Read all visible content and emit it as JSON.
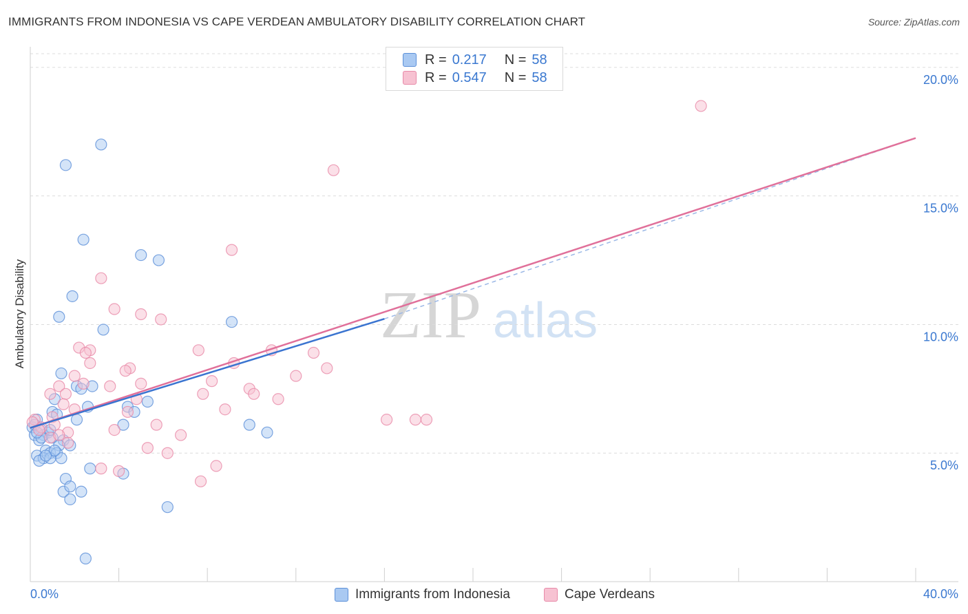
{
  "title": "IMMIGRANTS FROM INDONESIA VS CAPE VERDEAN AMBULATORY DISABILITY CORRELATION CHART",
  "source": "Source: ZipAtlas.com",
  "legend": {
    "r_label": "R =",
    "n_label": "N =",
    "series1": {
      "r": "0.217",
      "n": "58"
    },
    "series2": {
      "r": "0.547",
      "n": "58"
    }
  },
  "bottom_legend": {
    "series1": "Immigrants from Indonesia",
    "series2": "Cape Verdeans"
  },
  "watermark": {
    "zip": "ZIP",
    "atlas": "atlas"
  },
  "colors": {
    "blue_fill": "#a9c9f2",
    "blue_stroke": "#5b8fd8",
    "blue_line": "#3a74d0",
    "pink_fill": "#f7c2d2",
    "pink_stroke": "#e889a8",
    "pink_line": "#e0709a",
    "axis_text": "#3a78d0"
  },
  "chart_data": {
    "type": "scatter",
    "xlabel": "",
    "ylabel": "Ambulatory Disability",
    "xlim": [
      0,
      40
    ],
    "ylim": [
      0,
      20.8
    ],
    "x_tick_labels": [
      {
        "value": 0,
        "label": "0.0%"
      },
      {
        "value": 40,
        "label": "40.0%"
      }
    ],
    "y_tick_labels": [
      {
        "value": 5,
        "label": "5.0%"
      },
      {
        "value": 10,
        "label": "10.0%"
      },
      {
        "value": 15,
        "label": "15.0%"
      },
      {
        "value": 20,
        "label": "20.0%"
      }
    ],
    "series": [
      {
        "name": "Immigrants from Indonesia",
        "points": [
          [
            3.2,
            17.0
          ],
          [
            1.6,
            16.2
          ],
          [
            2.4,
            13.3
          ],
          [
            5.0,
            12.7
          ],
          [
            5.8,
            12.5
          ],
          [
            1.9,
            11.1
          ],
          [
            1.3,
            10.3
          ],
          [
            3.3,
            9.8
          ],
          [
            9.1,
            10.1
          ],
          [
            1.4,
            8.1
          ],
          [
            2.1,
            7.6
          ],
          [
            2.8,
            7.6
          ],
          [
            2.3,
            7.5
          ],
          [
            1.1,
            7.1
          ],
          [
            2.6,
            6.8
          ],
          [
            4.4,
            6.8
          ],
          [
            5.3,
            7.0
          ],
          [
            4.7,
            6.6
          ],
          [
            1.0,
            6.6
          ],
          [
            0.3,
            6.3
          ],
          [
            2.1,
            6.3
          ],
          [
            4.2,
            6.1
          ],
          [
            9.9,
            6.1
          ],
          [
            10.7,
            5.8
          ],
          [
            0.1,
            6.0
          ],
          [
            0.5,
            5.9
          ],
          [
            0.8,
            5.8
          ],
          [
            0.2,
            5.7
          ],
          [
            0.6,
            5.7
          ],
          [
            1.0,
            5.6
          ],
          [
            0.4,
            5.5
          ],
          [
            1.5,
            5.5
          ],
          [
            1.3,
            5.3
          ],
          [
            1.8,
            5.3
          ],
          [
            0.7,
            5.1
          ],
          [
            0.9,
            5.0
          ],
          [
            1.2,
            5.0
          ],
          [
            0.3,
            4.9
          ],
          [
            0.6,
            4.8
          ],
          [
            0.9,
            4.8
          ],
          [
            1.4,
            4.8
          ],
          [
            0.4,
            4.7
          ],
          [
            2.7,
            4.4
          ],
          [
            1.6,
            4.0
          ],
          [
            4.2,
            4.2
          ],
          [
            1.5,
            3.5
          ],
          [
            2.3,
            3.5
          ],
          [
            1.8,
            3.2
          ],
          [
            6.2,
            2.9
          ],
          [
            2.5,
            0.9
          ],
          [
            0.2,
            6.1
          ],
          [
            0.9,
            5.9
          ],
          [
            1.1,
            5.1
          ],
          [
            0.5,
            5.6
          ],
          [
            1.2,
            6.5
          ],
          [
            0.7,
            4.9
          ],
          [
            1.8,
            3.7
          ],
          [
            0.3,
            5.8
          ]
        ]
      },
      {
        "name": "Cape Verdeans",
        "points": [
          [
            30.3,
            18.5
          ],
          [
            13.7,
            16.0
          ],
          [
            9.1,
            12.9
          ],
          [
            3.2,
            11.8
          ],
          [
            3.8,
            10.6
          ],
          [
            5.0,
            10.4
          ],
          [
            5.9,
            10.2
          ],
          [
            2.2,
            9.1
          ],
          [
            2.7,
            9.0
          ],
          [
            2.5,
            8.9
          ],
          [
            7.6,
            9.0
          ],
          [
            10.9,
            9.0
          ],
          [
            12.8,
            8.9
          ],
          [
            9.2,
            8.5
          ],
          [
            2.7,
            8.5
          ],
          [
            4.5,
            8.3
          ],
          [
            4.3,
            8.2
          ],
          [
            13.4,
            8.3
          ],
          [
            12.0,
            8.0
          ],
          [
            2.0,
            8.0
          ],
          [
            8.2,
            7.8
          ],
          [
            2.4,
            7.7
          ],
          [
            5.0,
            7.7
          ],
          [
            3.6,
            7.6
          ],
          [
            1.3,
            7.6
          ],
          [
            9.9,
            7.5
          ],
          [
            10.1,
            7.3
          ],
          [
            7.8,
            7.3
          ],
          [
            0.9,
            7.3
          ],
          [
            1.6,
            7.3
          ],
          [
            11.2,
            7.1
          ],
          [
            4.8,
            7.1
          ],
          [
            1.5,
            6.9
          ],
          [
            2.0,
            6.7
          ],
          [
            8.8,
            6.7
          ],
          [
            4.4,
            6.6
          ],
          [
            1.0,
            6.4
          ],
          [
            0.2,
            6.3
          ],
          [
            16.1,
            6.3
          ],
          [
            17.4,
            6.3
          ],
          [
            17.9,
            6.3
          ],
          [
            5.7,
            6.1
          ],
          [
            1.1,
            6.1
          ],
          [
            0.5,
            6.0
          ],
          [
            3.8,
            5.9
          ],
          [
            1.7,
            5.8
          ],
          [
            6.8,
            5.7
          ],
          [
            0.9,
            5.6
          ],
          [
            1.7,
            5.4
          ],
          [
            5.3,
            5.2
          ],
          [
            6.2,
            5.0
          ],
          [
            3.2,
            4.4
          ],
          [
            4.0,
            4.3
          ],
          [
            8.4,
            4.5
          ],
          [
            7.7,
            3.9
          ],
          [
            0.1,
            6.2
          ],
          [
            0.4,
            5.9
          ],
          [
            1.3,
            5.7
          ]
        ]
      }
    ],
    "trend_lines": [
      {
        "name": "Immigrants from Indonesia",
        "x": [
          0,
          16.0
        ],
        "y": [
          5.98,
          10.22
        ],
        "dashed_extension": {
          "x": [
            16.0,
            40
          ],
          "y": [
            10.22,
            17.25
          ]
        }
      },
      {
        "name": "Cape Verdeans",
        "x": [
          0,
          40
        ],
        "y": [
          5.98,
          17.25
        ]
      }
    ]
  }
}
